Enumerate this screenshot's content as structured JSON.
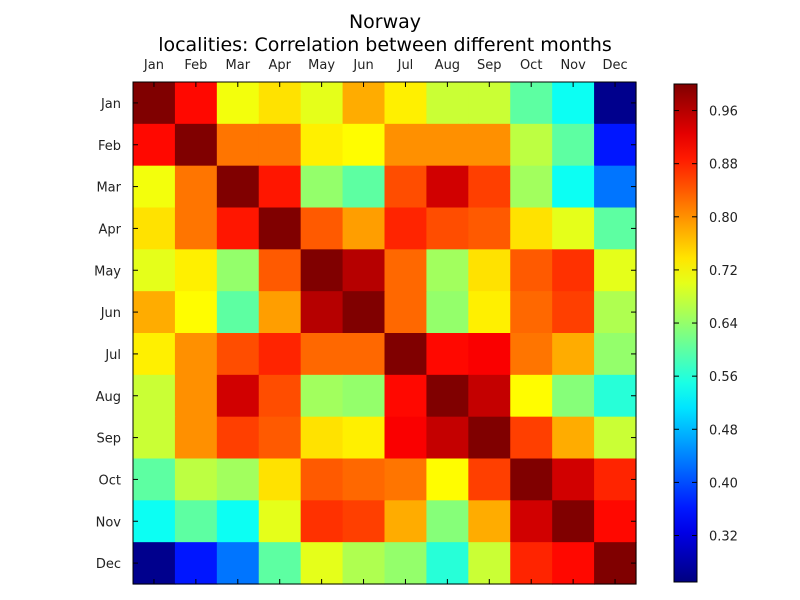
{
  "chart_data": {
    "type": "heatmap",
    "title": "Norway",
    "subtitle": "localities: Correlation between different months",
    "xlabel": "",
    "ylabel": "",
    "x_categories": [
      "Jan",
      "Feb",
      "Mar",
      "Apr",
      "May",
      "Jun",
      "Jul",
      "Aug",
      "Sep",
      "Oct",
      "Nov",
      "Dec"
    ],
    "y_categories": [
      "Jan",
      "Feb",
      "Mar",
      "Apr",
      "May",
      "Jun",
      "Jul",
      "Aug",
      "Sep",
      "Oct",
      "Nov",
      "Dec"
    ],
    "colormap": "jet",
    "value_range": [
      0.25,
      1.0
    ],
    "colorbar_ticks": [
      "0.32",
      "0.40",
      "0.48",
      "0.56",
      "0.64",
      "0.72",
      "0.80",
      "0.88",
      "0.96"
    ],
    "values": [
      [
        1.0,
        0.9,
        0.71,
        0.74,
        0.7,
        0.78,
        0.73,
        0.68,
        0.68,
        0.6,
        0.54,
        0.26
      ],
      [
        0.9,
        1.0,
        0.82,
        0.82,
        0.73,
        0.72,
        0.8,
        0.8,
        0.8,
        0.67,
        0.6,
        0.36
      ],
      [
        0.71,
        0.82,
        1.0,
        0.89,
        0.64,
        0.6,
        0.85,
        0.94,
        0.86,
        0.65,
        0.54,
        0.43
      ],
      [
        0.74,
        0.82,
        0.89,
        1.0,
        0.84,
        0.79,
        0.88,
        0.85,
        0.84,
        0.74,
        0.7,
        0.6
      ],
      [
        0.7,
        0.73,
        0.64,
        0.84,
        1.0,
        0.96,
        0.83,
        0.65,
        0.74,
        0.84,
        0.87,
        0.7
      ],
      [
        0.78,
        0.72,
        0.6,
        0.79,
        0.96,
        1.0,
        0.83,
        0.64,
        0.73,
        0.83,
        0.86,
        0.66
      ],
      [
        0.73,
        0.8,
        0.85,
        0.88,
        0.83,
        0.83,
        1.0,
        0.9,
        0.91,
        0.82,
        0.78,
        0.64
      ],
      [
        0.68,
        0.8,
        0.94,
        0.85,
        0.65,
        0.64,
        0.9,
        1.0,
        0.95,
        0.72,
        0.63,
        0.56
      ],
      [
        0.68,
        0.8,
        0.86,
        0.84,
        0.74,
        0.73,
        0.91,
        0.95,
        1.0,
        0.86,
        0.78,
        0.68
      ],
      [
        0.6,
        0.67,
        0.65,
        0.74,
        0.84,
        0.83,
        0.82,
        0.72,
        0.86,
        1.0,
        0.94,
        0.88
      ],
      [
        0.54,
        0.6,
        0.54,
        0.7,
        0.87,
        0.86,
        0.78,
        0.63,
        0.78,
        0.94,
        1.0,
        0.9
      ],
      [
        0.26,
        0.36,
        0.43,
        0.6,
        0.7,
        0.66,
        0.64,
        0.56,
        0.68,
        0.88,
        0.9,
        1.0
      ]
    ]
  }
}
